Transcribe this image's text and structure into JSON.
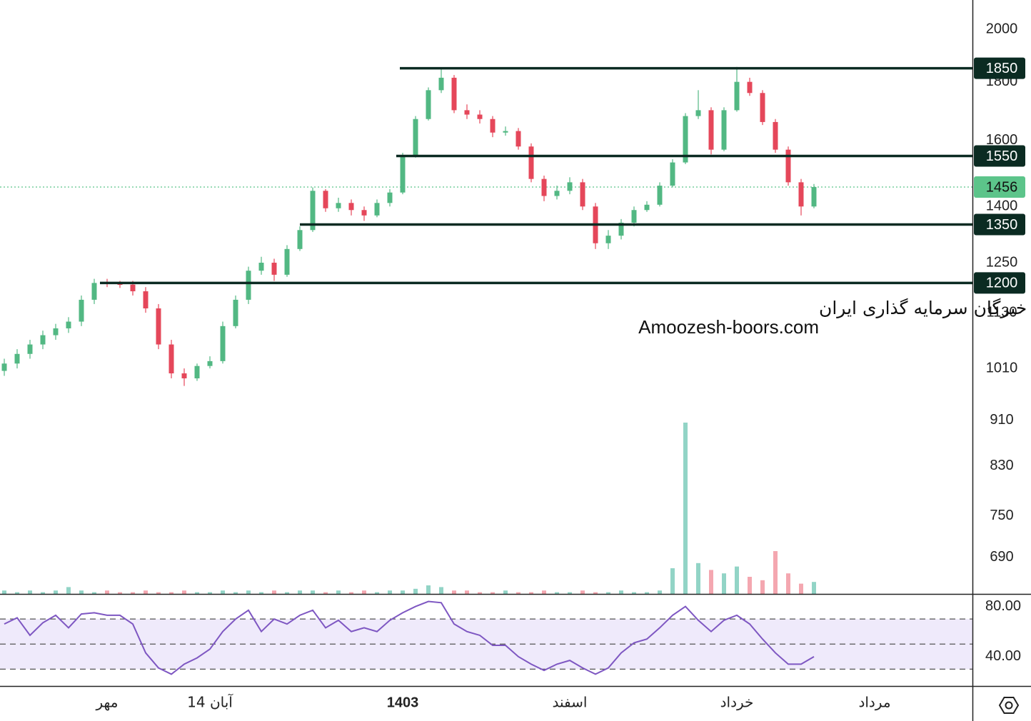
{
  "chart_data": {
    "type": "candlestick",
    "log_scale": true,
    "ylim": [
      641,
      2123
    ],
    "yticks": [
      2000,
      1800,
      1600,
      1400,
      1250,
      1130,
      1010,
      910,
      830,
      750,
      690
    ],
    "categories": [
      null,
      null,
      null,
      null,
      null,
      null,
      null,
      null,
      "مهر",
      null,
      null,
      null,
      null,
      null,
      null,
      null,
      "14 آبان",
      null,
      null,
      null,
      null,
      null,
      null,
      null,
      null,
      null,
      null,
      null,
      null,
      null,
      null,
      "1403",
      null,
      null,
      null,
      null,
      null,
      null,
      null,
      null,
      null,
      null,
      null,
      null,
      "اسفند",
      null,
      null,
      null,
      null,
      null,
      null,
      null,
      null,
      null,
      null,
      null,
      null,
      "خرداد",
      null,
      null,
      null,
      null,
      null,
      null
    ],
    "future_label": "مرداد",
    "open": [
      1005,
      1020,
      1040,
      1060,
      1080,
      1095,
      1110,
      1160,
      1200,
      1198,
      1196,
      1180,
      1140,
      1060,
      1000,
      990,
      1015,
      1025,
      1100,
      1160,
      1230,
      1250,
      1220,
      1285,
      1335,
      1445,
      1395,
      1410,
      1390,
      1375,
      1410,
      1440,
      1550,
      1670,
      1770,
      1815,
      1700,
      1685,
      1670,
      1625,
      1630,
      1580,
      1480,
      1430,
      1445,
      1470,
      1400,
      1300,
      1320,
      1355,
      1390,
      1405,
      1460,
      1530,
      1680,
      1700,
      1570,
      1700,
      1800,
      1760,
      1660,
      1570,
      1470,
      1400
    ],
    "high": [
      1030,
      1050,
      1070,
      1090,
      1105,
      1120,
      1170,
      1210,
      1210,
      1205,
      1205,
      1190,
      1150,
      1070,
      1010,
      1020,
      1035,
      1110,
      1170,
      1240,
      1265,
      1260,
      1295,
      1345,
      1455,
      1450,
      1425,
      1420,
      1400,
      1420,
      1450,
      1560,
      1680,
      1780,
      1850,
      1825,
      1720,
      1700,
      1680,
      1645,
      1640,
      1590,
      1490,
      1460,
      1485,
      1480,
      1410,
      1335,
      1365,
      1400,
      1415,
      1470,
      1540,
      1690,
      1770,
      1710,
      1710,
      1855,
      1815,
      1770,
      1670,
      1580,
      1480,
      1465
    ],
    "low": [
      995,
      1010,
      1030,
      1050,
      1070,
      1085,
      1100,
      1150,
      1190,
      1188,
      1170,
      1130,
      1050,
      990,
      975,
      985,
      1010,
      1020,
      1095,
      1150,
      1220,
      1205,
      1215,
      1280,
      1330,
      1385,
      1385,
      1375,
      1360,
      1370,
      1400,
      1435,
      1545,
      1665,
      1760,
      1690,
      1670,
      1655,
      1610,
      1615,
      1570,
      1470,
      1415,
      1420,
      1435,
      1390,
      1285,
      1285,
      1310,
      1345,
      1385,
      1400,
      1455,
      1525,
      1670,
      1555,
      1565,
      1695,
      1750,
      1650,
      1560,
      1460,
      1375,
      1395
    ],
    "close": [
      1020,
      1040,
      1060,
      1080,
      1095,
      1110,
      1160,
      1200,
      1198,
      1196,
      1180,
      1140,
      1060,
      1000,
      990,
      1015,
      1025,
      1100,
      1160,
      1230,
      1250,
      1220,
      1285,
      1335,
      1445,
      1395,
      1410,
      1390,
      1375,
      1410,
      1440,
      1550,
      1670,
      1770,
      1815,
      1700,
      1685,
      1670,
      1625,
      1630,
      1580,
      1480,
      1430,
      1445,
      1470,
      1400,
      1300,
      1320,
      1355,
      1390,
      1405,
      1460,
      1530,
      1680,
      1700,
      1570,
      1700,
      1800,
      1760,
      1660,
      1570,
      1470,
      1400,
      1456
    ],
    "up_color": "#52b883",
    "down_color": "#e5475a",
    "volume": {
      "values": [
        2,
        1,
        2,
        1,
        2,
        4,
        2,
        1,
        2,
        1,
        1,
        2,
        1,
        1,
        2,
        1,
        1,
        2,
        1,
        2,
        1,
        2,
        1,
        2,
        2,
        1,
        2,
        1,
        2,
        1,
        2,
        2,
        3,
        5,
        4,
        2,
        2,
        1,
        1,
        2,
        1,
        1,
        2,
        1,
        1,
        2,
        1,
        1,
        2,
        1,
        1,
        2,
        15,
        100,
        18,
        14,
        12,
        16,
        10,
        8,
        25,
        12,
        6,
        7
      ],
      "up_color": "#92d4c6",
      "down_color": "#f4a7b0"
    },
    "levels": [
      1850,
      1550,
      1350,
      1200
    ],
    "level_color": "#0b2b22",
    "last_price": 1456,
    "last_price_color": "#5cc48a",
    "watermark": [
      "انجمن خبرگان سرمایه گذاری ایران",
      "Amoozesh-boors.com"
    ],
    "rsi": {
      "values": [
        66,
        71,
        57,
        67,
        73,
        63,
        74,
        75,
        73,
        73,
        66,
        43,
        31,
        26,
        34,
        39,
        46,
        60,
        70,
        77,
        60,
        70,
        66,
        73,
        77,
        63,
        69,
        60,
        63,
        60,
        69,
        75,
        80,
        84,
        83,
        66,
        60,
        57,
        49,
        49,
        40,
        34,
        29,
        34,
        37,
        31,
        26,
        31,
        43,
        51,
        54,
        63,
        73,
        80,
        69,
        60,
        69,
        73,
        66,
        54,
        43,
        34,
        34,
        40
      ],
      "ylim": [
        16,
        90
      ],
      "yticks": [
        {
          "value": 80,
          "label": "80.00"
        },
        {
          "value": 40,
          "label": "40.00"
        }
      ],
      "bands": [
        70,
        50,
        30
      ],
      "color": "#7e57c2",
      "band_color": "#efeafb"
    }
  }
}
